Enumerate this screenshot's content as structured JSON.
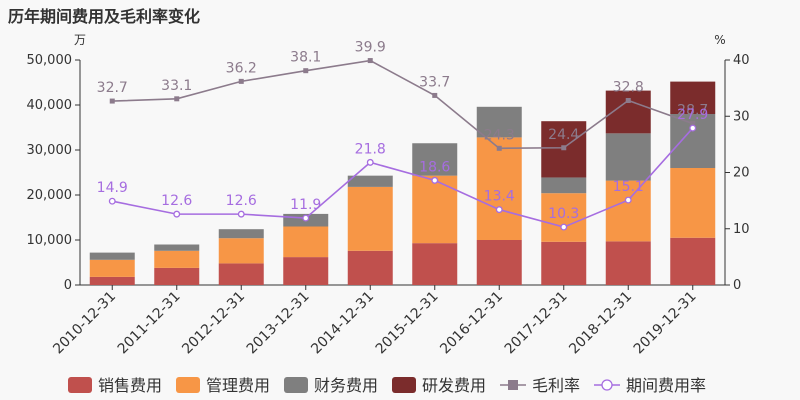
{
  "chart_data": {
    "type": "bar",
    "title": "历年期间费用及毛利率变化",
    "ylabel_left": "万",
    "ylabel_right": "%",
    "ylim_left": [
      0,
      50000
    ],
    "ylim_right": [
      0,
      40
    ],
    "yticks_left": [
      "0",
      "10,000",
      "20,000",
      "30,000",
      "40,000",
      "50,000"
    ],
    "yticks_right": [
      "0",
      "10",
      "20",
      "30",
      "40"
    ],
    "categories": [
      "2010-12-31",
      "2011-12-31",
      "2012-12-31",
      "2013-12-31",
      "2014-12-31",
      "2015-12-31",
      "2016-12-31",
      "2017-12-31",
      "2018-12-31",
      "2019-12-31"
    ],
    "stacked": true,
    "legend_position": "bottom",
    "series": [
      {
        "name": "销售费用",
        "type": "bar",
        "axis": "left",
        "color": "#c0504d",
        "values": [
          1800,
          3800,
          4800,
          6200,
          7600,
          9300,
          10000,
          9600,
          9700,
          10500
        ]
      },
      {
        "name": "管理费用",
        "type": "bar",
        "axis": "left",
        "color": "#f79646",
        "values": [
          3800,
          3800,
          5600,
          6800,
          14200,
          15000,
          22800,
          10800,
          13500,
          15500
        ]
      },
      {
        "name": "财务费用",
        "type": "bar",
        "axis": "left",
        "color": "#7f7f7f",
        "values": [
          1600,
          1400,
          2000,
          2800,
          2500,
          7200,
          6800,
          3500,
          10500,
          12000
        ]
      },
      {
        "name": "研发费用",
        "type": "bar",
        "axis": "left",
        "color": "#7b2c2c",
        "values": [
          0,
          0,
          0,
          0,
          0,
          0,
          0,
          12500,
          9500,
          7200
        ]
      },
      {
        "name": "毛利率",
        "type": "line",
        "axis": "right",
        "color": "#8c7b8c",
        "marker": "square",
        "values": [
          32.7,
          33.1,
          36.2,
          38.1,
          39.9,
          33.7,
          24.3,
          24.4,
          32.8,
          28.7
        ]
      },
      {
        "name": "期间费用率",
        "type": "line",
        "axis": "right",
        "color": "#a66de0",
        "marker": "circle",
        "values": [
          14.9,
          12.6,
          12.6,
          11.9,
          21.8,
          18.6,
          13.4,
          10.3,
          15.1,
          27.9
        ]
      }
    ],
    "point_labels": {
      "毛利率": [
        "32.7",
        "33.1",
        "36.2",
        "38.1",
        "39.9",
        "33.7",
        "24.3",
        "24.4",
        "32.8",
        "28.7"
      ],
      "期间费用率": [
        "14.9",
        "12.6",
        "12.6",
        "11.9",
        "21.8",
        "18.6",
        "13.4",
        "10.3",
        "15.1",
        "27.9"
      ]
    }
  }
}
